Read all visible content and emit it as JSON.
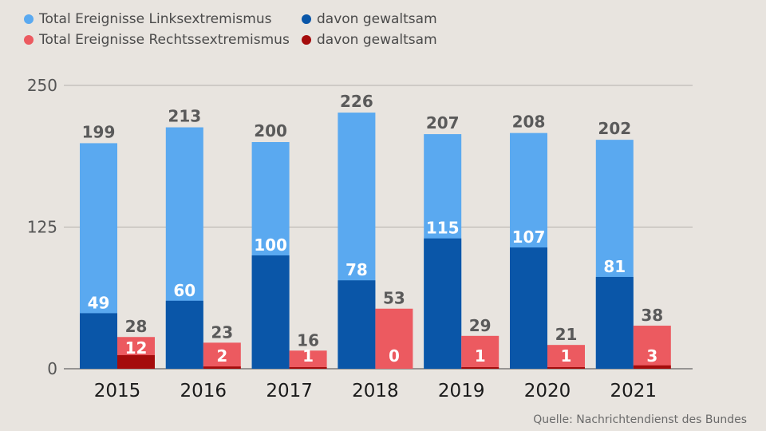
{
  "legend": {
    "left_total": "Total Ereignisse Linksextremismus",
    "left_violent": "davon gewaltsam",
    "right_total": "Total Ereignisse Rechtssextremismus",
    "right_violent": "davon gewaltsam"
  },
  "colors": {
    "left_total": "#5aa9f0",
    "left_violent": "#0a56a8",
    "right_total": "#ec5a60",
    "right_violent": "#a50c0c",
    "background": "#e8e4df"
  },
  "source": "Quelle: Nachrichtendienst des Bundes",
  "chart_data": {
    "type": "bar",
    "categories": [
      "2015",
      "2016",
      "2017",
      "2018",
      "2019",
      "2020",
      "2021"
    ],
    "yticks": [
      0,
      125,
      250
    ],
    "ylim": [
      0,
      250
    ],
    "grid": true,
    "legend_position": "top-left",
    "series": [
      {
        "name": "Total Ereignisse Linksextremismus",
        "values": [
          199,
          213,
          200,
          226,
          207,
          208,
          202
        ]
      },
      {
        "name": "davon gewaltsam",
        "values": [
          49,
          60,
          100,
          78,
          115,
          107,
          81
        ]
      },
      {
        "name": "Total Ereignisse Rechtssextremismus",
        "values": [
          28,
          23,
          16,
          53,
          29,
          21,
          38
        ]
      },
      {
        "name": "davon gewaltsam",
        "values": [
          12,
          2,
          1,
          0,
          1,
          1,
          3
        ]
      }
    ]
  }
}
